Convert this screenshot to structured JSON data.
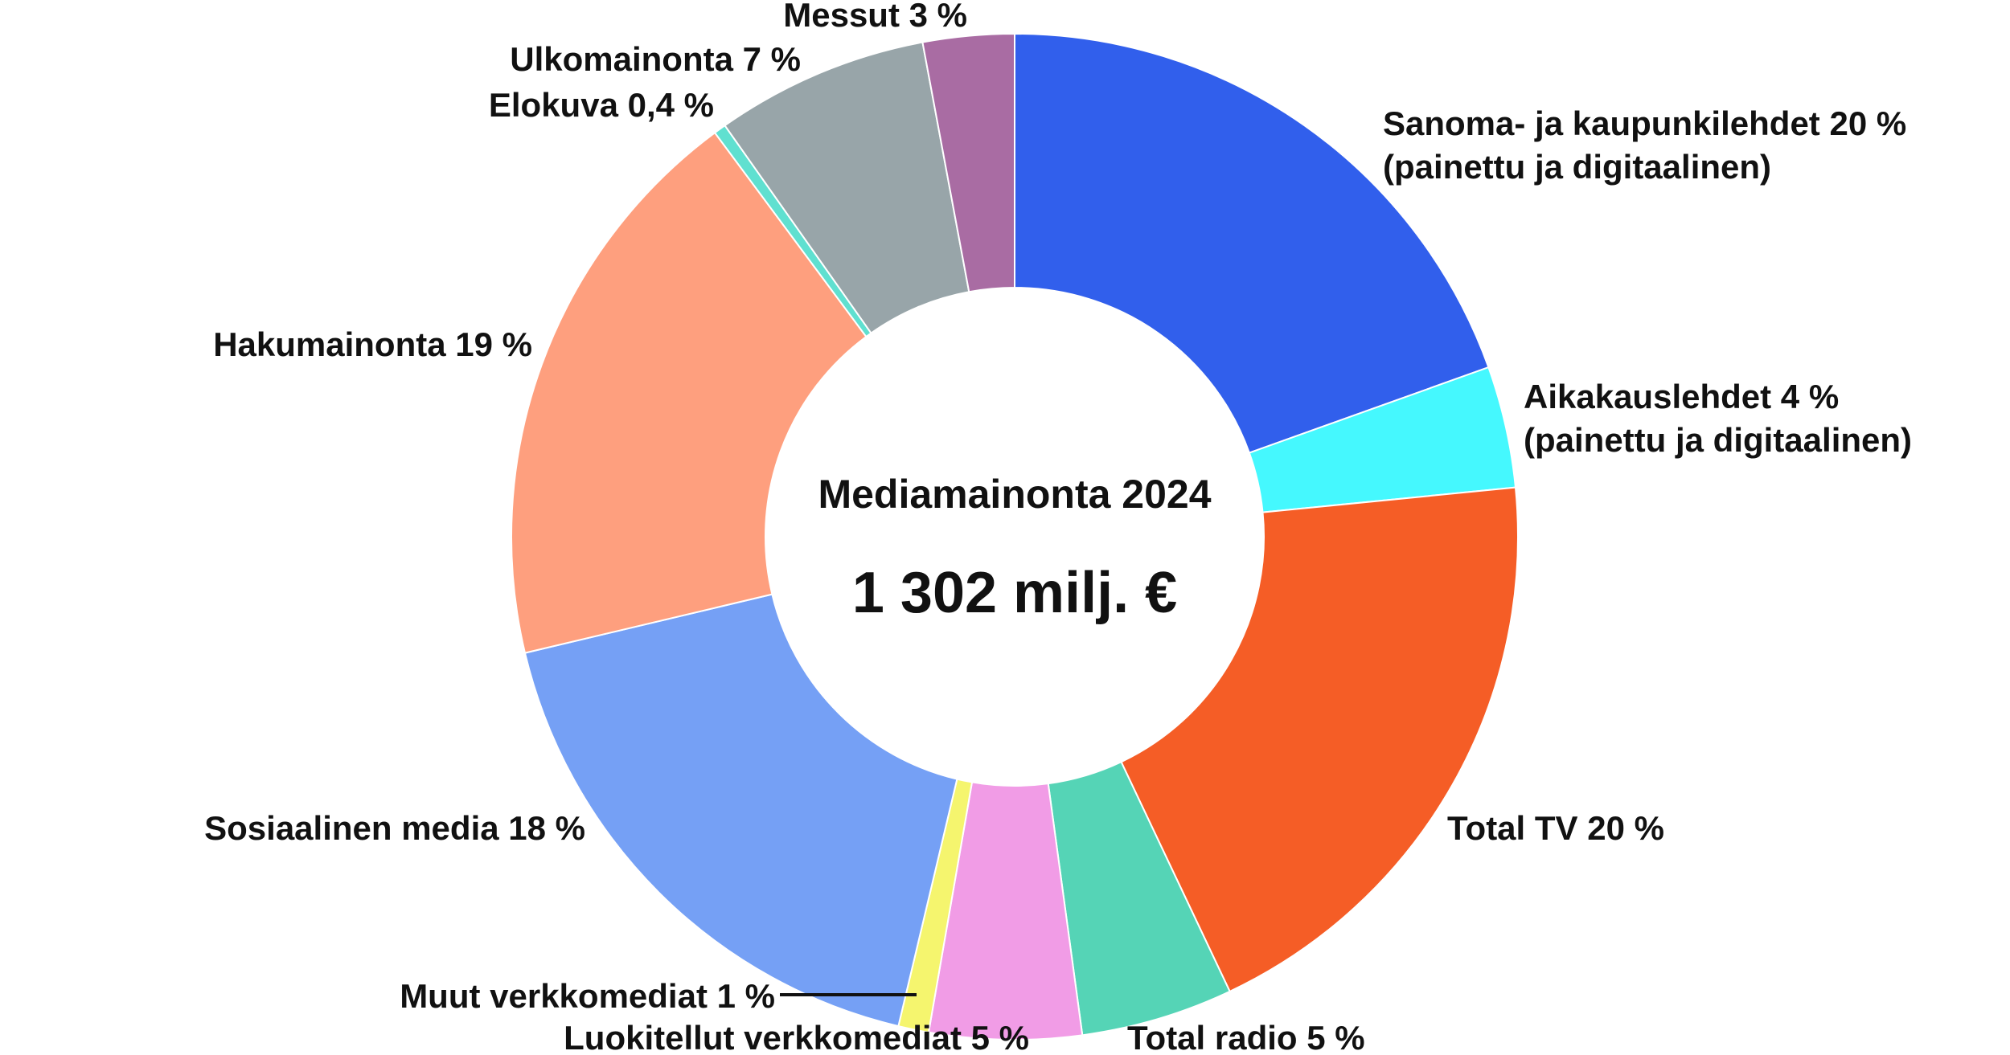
{
  "chart_data": {
    "type": "pie",
    "variant": "donut",
    "center_title": "Mediamainonta 2024",
    "center_value": "1 302 milj. €",
    "slices": [
      {
        "label": "Sanoma- ja kaupunkilehdet 20 %",
        "label_line2": "(painettu ja digitaalinen)",
        "value": 20,
        "color": "#315fec"
      },
      {
        "label": "Aikakauslehdet 4 %",
        "label_line2": "(painettu ja digitaalinen)",
        "value": 4,
        "color": "#45f8fe"
      },
      {
        "label": "Total TV 20 %",
        "value": 20,
        "color": "#f55d26"
      },
      {
        "label": "Total radio 5 %",
        "value": 5,
        "color": "#55d4b6"
      },
      {
        "label": "Luokitellut verkkomediat 5 %",
        "value": 5,
        "color": "#f19ce6"
      },
      {
        "label": "Muut verkkomediat 1 %",
        "value": 1,
        "color": "#f5f56e"
      },
      {
        "label": "Sosiaalinen media 18 %",
        "value": 18,
        "color": "#75a0f5"
      },
      {
        "label": "Hakumainonta 19 %",
        "value": 19,
        "color": "#fe9f7e"
      },
      {
        "label": "Elokuva 0,4 %",
        "value": 0.4,
        "color": "#60e0d0"
      },
      {
        "label": "Ulkomainonta 7 %",
        "value": 7,
        "color": "#98a5a9"
      },
      {
        "label": "Messut 3 %",
        "value": 3,
        "color": "#a96ca3"
      }
    ]
  }
}
